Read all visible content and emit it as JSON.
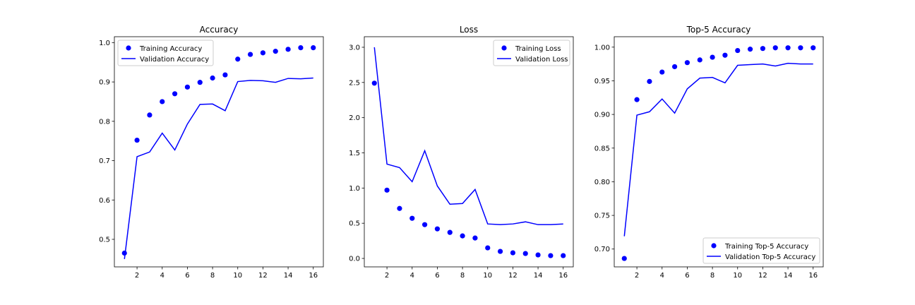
{
  "chart_data": [
    {
      "type": "line",
      "title": "Accuracy",
      "xlabel": "",
      "ylabel": "",
      "x": [
        1,
        2,
        3,
        4,
        5,
        6,
        7,
        8,
        9,
        10,
        11,
        12,
        13,
        14,
        15,
        16
      ],
      "xlim": [
        0.2,
        16.8
      ],
      "ylim": [
        0.43,
        1.015
      ],
      "xticks": [
        2,
        4,
        6,
        8,
        10,
        12,
        14,
        16
      ],
      "yticks": [
        0.5,
        0.6,
        0.7,
        0.8,
        0.9,
        1.0
      ],
      "ytick_labels": [
        "0.5",
        "0.6",
        "0.7",
        "0.8",
        "0.9",
        "1.0"
      ],
      "legend_position": "top-left",
      "series": [
        {
          "name": "Training Accuracy",
          "style": "dots",
          "color": "#0000ff",
          "values": [
            0.465,
            0.752,
            0.816,
            0.85,
            0.87,
            0.887,
            0.899,
            0.91,
            0.918,
            0.958,
            0.97,
            0.974,
            0.978,
            0.983,
            0.987,
            0.987
          ]
        },
        {
          "name": "Validation Accuracy",
          "style": "line",
          "color": "#0000ff",
          "values": [
            0.45,
            0.71,
            0.722,
            0.77,
            0.727,
            0.793,
            0.843,
            0.844,
            0.827,
            0.901,
            0.904,
            0.903,
            0.899,
            0.909,
            0.908,
            0.91
          ]
        }
      ]
    },
    {
      "type": "line",
      "title": "Loss",
      "xlabel": "",
      "ylabel": "",
      "x": [
        1,
        2,
        3,
        4,
        5,
        6,
        7,
        8,
        9,
        10,
        11,
        12,
        13,
        14,
        15,
        16
      ],
      "xlim": [
        0.2,
        16.8
      ],
      "ylim": [
        -0.12,
        3.15
      ],
      "xticks": [
        2,
        4,
        6,
        8,
        10,
        12,
        14,
        16
      ],
      "yticks": [
        0.0,
        0.5,
        1.0,
        1.5,
        2.0,
        2.5,
        3.0
      ],
      "ytick_labels": [
        "0.0",
        "0.5",
        "1.0",
        "1.5",
        "2.0",
        "2.5",
        "3.0"
      ],
      "legend_position": "top-right",
      "series": [
        {
          "name": "Training Loss",
          "style": "dots",
          "color": "#0000ff",
          "values": [
            2.49,
            0.97,
            0.71,
            0.57,
            0.48,
            0.42,
            0.37,
            0.32,
            0.29,
            0.15,
            0.1,
            0.08,
            0.07,
            0.05,
            0.04,
            0.04
          ]
        },
        {
          "name": "Validation Loss",
          "style": "line",
          "color": "#0000ff",
          "values": [
            3.0,
            1.34,
            1.29,
            1.09,
            1.53,
            1.03,
            0.77,
            0.78,
            0.98,
            0.49,
            0.48,
            0.49,
            0.52,
            0.48,
            0.48,
            0.49
          ]
        }
      ]
    },
    {
      "type": "line",
      "title": "Top-5 Accuracy",
      "xlabel": "",
      "ylabel": "",
      "x": [
        1,
        2,
        3,
        4,
        5,
        6,
        7,
        8,
        9,
        10,
        11,
        12,
        13,
        14,
        15,
        16
      ],
      "xlim": [
        0.2,
        16.8
      ],
      "ylim": [
        0.6735,
        1.0155
      ],
      "xticks": [
        2,
        4,
        6,
        8,
        10,
        12,
        14,
        16
      ],
      "yticks": [
        0.7,
        0.75,
        0.8,
        0.85,
        0.9,
        0.95,
        1.0
      ],
      "ytick_labels": [
        "0.70",
        "0.75",
        "0.80",
        "0.85",
        "0.90",
        "0.95",
        "1.00"
      ],
      "legend_position": "bottom-right",
      "series": [
        {
          "name": "Training Top-5 Accuracy",
          "style": "dots",
          "color": "#0000ff",
          "values": [
            0.686,
            0.922,
            0.949,
            0.963,
            0.971,
            0.977,
            0.981,
            0.985,
            0.988,
            0.995,
            0.997,
            0.998,
            0.999,
            0.999,
            0.999,
            0.999
          ]
        },
        {
          "name": "Validation Top-5 Accuracy",
          "style": "line",
          "color": "#0000ff",
          "values": [
            0.719,
            0.899,
            0.904,
            0.923,
            0.902,
            0.938,
            0.954,
            0.955,
            0.947,
            0.973,
            0.974,
            0.975,
            0.972,
            0.976,
            0.975,
            0.975
          ]
        }
      ]
    }
  ]
}
